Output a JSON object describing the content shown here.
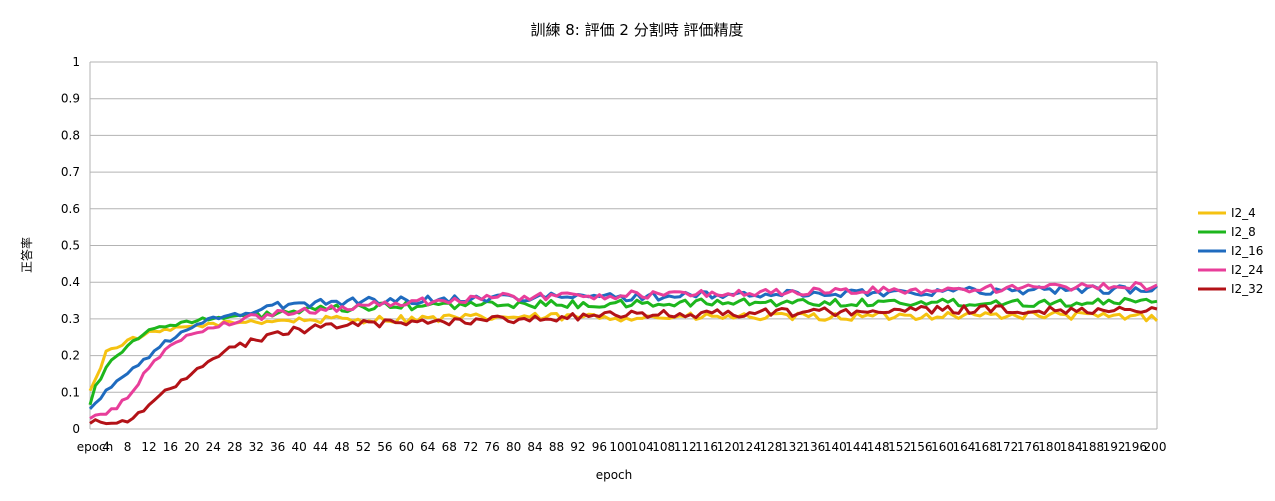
{
  "chart_data": {
    "type": "line",
    "title": "訓練 8: 評価 2 分割時 評価精度",
    "xlabel": "epoch",
    "ylabel": "正答率",
    "ylim": [
      0,
      1
    ],
    "yticks": [
      "0",
      "0.1",
      "0.2",
      "0.3",
      "0.4",
      "0.5",
      "0.6",
      "0.7",
      "0.8",
      "0.9",
      "1"
    ],
    "xticks": [
      "epoch",
      "4",
      "8",
      "12",
      "16",
      "20",
      "24",
      "28",
      "32",
      "36",
      "40",
      "44",
      "48",
      "52",
      "56",
      "60",
      "64",
      "68",
      "72",
      "76",
      "80",
      "84",
      "88",
      "92",
      "96",
      "100",
      "104",
      "108",
      "112",
      "116",
      "120",
      "124",
      "128",
      "132",
      "136",
      "140",
      "144",
      "148",
      "152",
      "156",
      "160",
      "164",
      "168",
      "172",
      "176",
      "180",
      "184",
      "188",
      "192",
      "196",
      "200"
    ],
    "grid": true,
    "legend_position": "right",
    "series": [
      {
        "name": "I2_4",
        "color": "#f5c211",
        "anchors": [
          [
            1,
            0.1
          ],
          [
            2,
            0.14
          ],
          [
            3,
            0.17
          ],
          [
            4,
            0.21
          ],
          [
            6,
            0.225
          ],
          [
            8,
            0.24
          ],
          [
            10,
            0.25
          ],
          [
            12,
            0.26
          ],
          [
            14,
            0.265
          ],
          [
            16,
            0.27
          ],
          [
            20,
            0.28
          ],
          [
            24,
            0.285
          ],
          [
            28,
            0.29
          ],
          [
            32,
            0.295
          ],
          [
            40,
            0.297
          ],
          [
            60,
            0.3
          ],
          [
            80,
            0.305
          ],
          [
            100,
            0.305
          ],
          [
            120,
            0.305
          ],
          [
            140,
            0.305
          ],
          [
            160,
            0.31
          ],
          [
            180,
            0.31
          ],
          [
            200,
            0.305
          ]
        ]
      },
      {
        "name": "I2_8",
        "color": "#1db61d",
        "anchors": [
          [
            1,
            0.07
          ],
          [
            2,
            0.12
          ],
          [
            3,
            0.14
          ],
          [
            4,
            0.17
          ],
          [
            6,
            0.2
          ],
          [
            8,
            0.23
          ],
          [
            10,
            0.25
          ],
          [
            12,
            0.265
          ],
          [
            14,
            0.275
          ],
          [
            16,
            0.285
          ],
          [
            18,
            0.29
          ],
          [
            20,
            0.295
          ],
          [
            24,
            0.3
          ],
          [
            28,
            0.305
          ],
          [
            32,
            0.31
          ],
          [
            40,
            0.32
          ],
          [
            50,
            0.33
          ],
          [
            60,
            0.335
          ],
          [
            80,
            0.34
          ],
          [
            100,
            0.34
          ],
          [
            120,
            0.345
          ],
          [
            140,
            0.345
          ],
          [
            160,
            0.345
          ],
          [
            180,
            0.345
          ],
          [
            200,
            0.345
          ]
        ]
      },
      {
        "name": "I2_16",
        "color": "#1f6bbf",
        "anchors": [
          [
            1,
            0.055
          ],
          [
            2,
            0.07
          ],
          [
            4,
            0.1
          ],
          [
            6,
            0.13
          ],
          [
            8,
            0.155
          ],
          [
            10,
            0.175
          ],
          [
            12,
            0.2
          ],
          [
            14,
            0.225
          ],
          [
            16,
            0.245
          ],
          [
            18,
            0.26
          ],
          [
            20,
            0.275
          ],
          [
            22,
            0.29
          ],
          [
            24,
            0.3
          ],
          [
            26,
            0.31
          ],
          [
            28,
            0.31
          ],
          [
            30,
            0.315
          ],
          [
            32,
            0.325
          ],
          [
            36,
            0.335
          ],
          [
            40,
            0.34
          ],
          [
            44,
            0.345
          ],
          [
            50,
            0.35
          ],
          [
            60,
            0.35
          ],
          [
            70,
            0.355
          ],
          [
            80,
            0.36
          ],
          [
            100,
            0.36
          ],
          [
            120,
            0.365
          ],
          [
            140,
            0.37
          ],
          [
            160,
            0.375
          ],
          [
            180,
            0.38
          ],
          [
            200,
            0.38
          ]
        ]
      },
      {
        "name": "I2_24",
        "color": "#e83e9a",
        "anchors": [
          [
            1,
            0.025
          ],
          [
            2,
            0.035
          ],
          [
            4,
            0.045
          ],
          [
            6,
            0.06
          ],
          [
            8,
            0.085
          ],
          [
            10,
            0.125
          ],
          [
            12,
            0.17
          ],
          [
            14,
            0.2
          ],
          [
            16,
            0.225
          ],
          [
            18,
            0.245
          ],
          [
            20,
            0.26
          ],
          [
            22,
            0.27
          ],
          [
            24,
            0.28
          ],
          [
            26,
            0.285
          ],
          [
            28,
            0.29
          ],
          [
            30,
            0.3
          ],
          [
            34,
            0.31
          ],
          [
            40,
            0.32
          ],
          [
            50,
            0.335
          ],
          [
            60,
            0.345
          ],
          [
            70,
            0.355
          ],
          [
            80,
            0.36
          ],
          [
            100,
            0.365
          ],
          [
            120,
            0.37
          ],
          [
            140,
            0.375
          ],
          [
            160,
            0.38
          ],
          [
            180,
            0.385
          ],
          [
            200,
            0.39
          ]
        ]
      },
      {
        "name": "I2_32",
        "color": "#b31217",
        "anchors": [
          [
            1,
            0.02
          ],
          [
            4,
            0.02
          ],
          [
            6,
            0.022
          ],
          [
            8,
            0.025
          ],
          [
            10,
            0.04
          ],
          [
            12,
            0.06
          ],
          [
            14,
            0.09
          ],
          [
            16,
            0.11
          ],
          [
            18,
            0.13
          ],
          [
            20,
            0.15
          ],
          [
            22,
            0.17
          ],
          [
            24,
            0.19
          ],
          [
            26,
            0.21
          ],
          [
            28,
            0.225
          ],
          [
            30,
            0.235
          ],
          [
            34,
            0.25
          ],
          [
            38,
            0.265
          ],
          [
            42,
            0.275
          ],
          [
            46,
            0.28
          ],
          [
            50,
            0.285
          ],
          [
            60,
            0.29
          ],
          [
            70,
            0.295
          ],
          [
            80,
            0.3
          ],
          [
            90,
            0.305
          ],
          [
            100,
            0.31
          ],
          [
            120,
            0.315
          ],
          [
            140,
            0.32
          ],
          [
            160,
            0.325
          ],
          [
            180,
            0.325
          ],
          [
            200,
            0.325
          ]
        ]
      }
    ]
  }
}
